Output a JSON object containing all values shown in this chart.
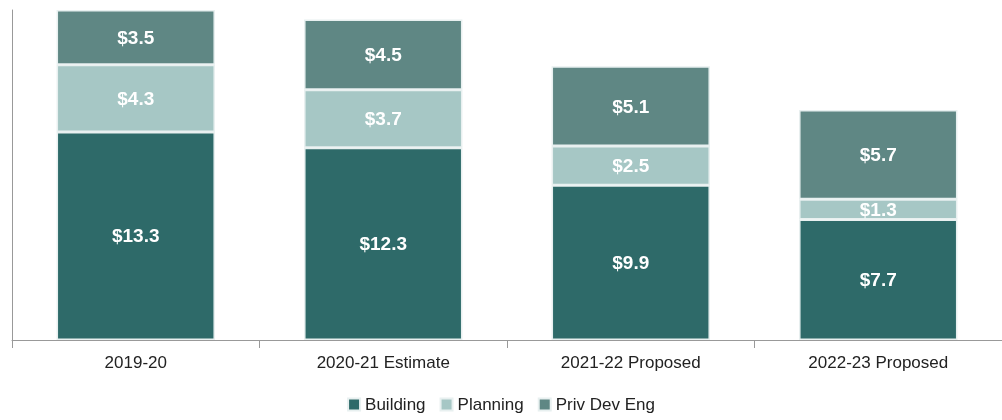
{
  "chart_data": {
    "type": "bar",
    "stacked": true,
    "categories": [
      "2019-20",
      "2020-21 Estimate",
      "2021-22 Proposed",
      "2022-23 Proposed"
    ],
    "series": [
      {
        "name": "Building",
        "color": "#2e6a69",
        "values": [
          13.3,
          12.3,
          9.9,
          7.7
        ],
        "value_labels": [
          "$13.3",
          "$12.3",
          "$9.9",
          "$7.7"
        ]
      },
      {
        "name": "Planning",
        "color": "#a6c7c5",
        "values": [
          4.3,
          3.7,
          2.5,
          1.3
        ],
        "value_labels": [
          "$4.3",
          "$3.7",
          "$2.5",
          "$1.3"
        ]
      },
      {
        "name": "Priv Dev Eng",
        "color": "#5f8784",
        "values": [
          3.5,
          4.5,
          5.1,
          5.7
        ],
        "value_labels": [
          "$3.5",
          "$4.5",
          "$5.1",
          "$5.7"
        ]
      }
    ],
    "legend": "bottom",
    "grid": false
  }
}
